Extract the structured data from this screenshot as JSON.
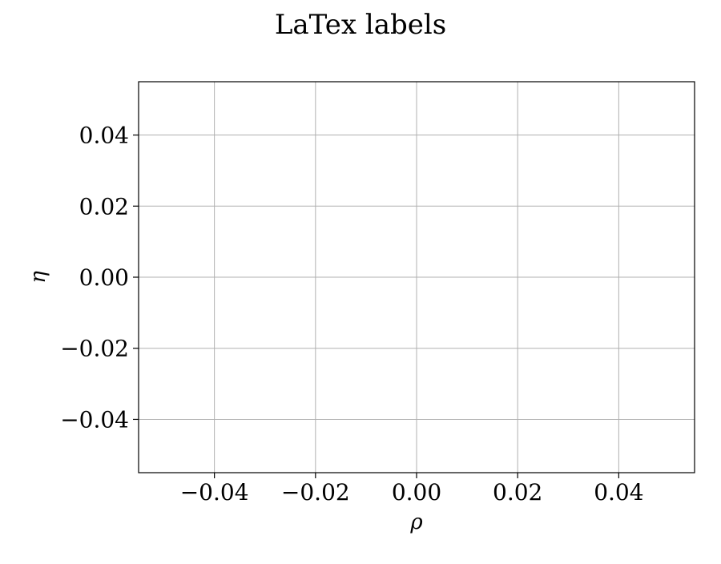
{
  "chart_data": {
    "type": "line",
    "title": "LaTex labels",
    "xlabel": "ρ",
    "ylabel": "η",
    "xlim": [
      -0.055,
      0.055
    ],
    "ylim": [
      -0.055,
      0.055
    ],
    "xticks": [
      -0.04,
      -0.02,
      0.0,
      0.02,
      0.04
    ],
    "yticks": [
      -0.04,
      -0.02,
      0.0,
      0.02,
      0.04
    ],
    "xtick_labels": [
      "−0.04",
      "−0.02",
      "0.00",
      "0.02",
      "0.04"
    ],
    "ytick_labels": [
      "−0.04",
      "−0.02",
      "0.00",
      "0.02",
      "0.04"
    ],
    "series": [],
    "grid": true,
    "colors": {
      "grid": "#b0b0b0",
      "axes": "#000000",
      "background": "#ffffff"
    }
  }
}
